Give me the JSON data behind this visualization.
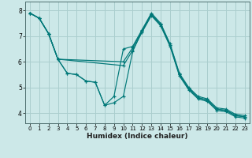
{
  "xlabel": "Humidex (Indice chaleur)",
  "xlim": [
    -0.5,
    23.5
  ],
  "ylim": [
    3.6,
    8.35
  ],
  "yticks": [
    4,
    5,
    6,
    7,
    8
  ],
  "xticks": [
    0,
    1,
    2,
    3,
    4,
    5,
    6,
    7,
    8,
    9,
    10,
    11,
    12,
    13,
    14,
    15,
    16,
    17,
    18,
    19,
    20,
    21,
    22,
    23
  ],
  "bg_color": "#cce8e8",
  "grid_color": "#aacece",
  "line_color": "#007878",
  "lines": [
    {
      "x": [
        0,
        1,
        2,
        3,
        4,
        5,
        6,
        7,
        8,
        9,
        10,
        11,
        12,
        13,
        14,
        15,
        16,
        17,
        18,
        19,
        20,
        21,
        22,
        23
      ],
      "y": [
        7.9,
        7.7,
        7.1,
        6.1,
        5.55,
        5.5,
        5.25,
        5.2,
        4.3,
        4.65,
        6.5,
        6.6,
        7.25,
        7.9,
        7.5,
        6.7,
        5.55,
        5.0,
        4.65,
        4.55,
        4.2,
        4.15,
        3.95,
        3.9
      ]
    },
    {
      "x": [
        0,
        1,
        2,
        3,
        10,
        11,
        12,
        13,
        14,
        15,
        16,
        17,
        18,
        19,
        20,
        21,
        22,
        23
      ],
      "y": [
        7.9,
        7.7,
        7.1,
        6.1,
        6.0,
        6.55,
        7.2,
        7.85,
        7.45,
        6.65,
        5.5,
        4.95,
        4.6,
        4.5,
        4.15,
        4.1,
        3.9,
        3.85
      ]
    },
    {
      "x": [
        0,
        1,
        2,
        3,
        10,
        11,
        12,
        13,
        14,
        15,
        16,
        17,
        18,
        19,
        20,
        21,
        22,
        23
      ],
      "y": [
        7.9,
        7.7,
        7.1,
        6.1,
        5.85,
        6.45,
        7.15,
        7.8,
        7.4,
        6.6,
        5.45,
        4.9,
        4.55,
        4.45,
        4.1,
        4.05,
        3.85,
        3.8
      ]
    },
    {
      "x": [
        0,
        1,
        2,
        3,
        4,
        5,
        6,
        7,
        8,
        9,
        10,
        11,
        12,
        13,
        14,
        15,
        16,
        17,
        18,
        19,
        20,
        21,
        22,
        23
      ],
      "y": [
        7.9,
        7.7,
        7.1,
        6.1,
        5.55,
        5.5,
        5.25,
        5.2,
        4.3,
        4.4,
        4.65,
        6.4,
        7.2,
        7.85,
        7.45,
        6.65,
        5.5,
        4.95,
        4.6,
        4.5,
        4.15,
        4.1,
        3.9,
        3.85
      ]
    }
  ]
}
